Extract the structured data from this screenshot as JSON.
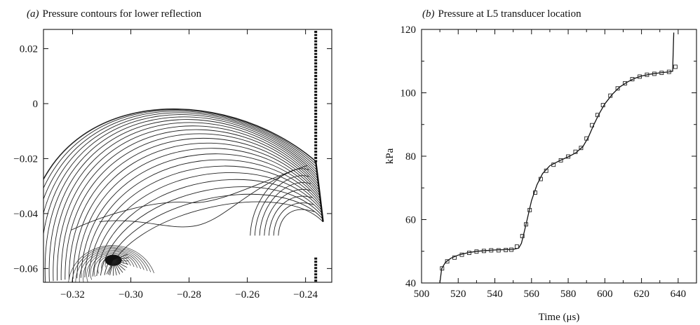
{
  "chart_data": [
    {
      "panel": "(a)",
      "type": "contour",
      "title_prefix": "(a)",
      "title": "Pressure contours for lower reflection",
      "xlabel": "",
      "ylabel": "",
      "xlim": [
        -0.33,
        -0.231
      ],
      "ylim": [
        -0.065,
        0.027
      ],
      "xticks": [
        -0.32,
        -0.3,
        -0.28,
        -0.26,
        -0.24
      ],
      "xtick_labels": [
        "−0.32",
        "−0.30",
        "−0.28",
        "−0.26",
        "−0.24"
      ],
      "yticks": [
        0.02,
        0,
        -0.02,
        -0.04,
        -0.06
      ],
      "ytick_labels": [
        "0.02",
        "0",
        "−0.02",
        "−0.04",
        "−0.06"
      ],
      "focus_point": [
        -0.306,
        -0.057
      ],
      "front_x": -0.2365,
      "front_kink": [
        -0.2365,
        -0.021
      ],
      "front_foot": [
        -0.234,
        -0.043
      ],
      "outer_front_top": [
        -0.275,
        -0.003
      ],
      "contour_count": 22
    },
    {
      "panel": "(b)",
      "type": "line",
      "title_prefix": "(b)",
      "title": "Pressure at L5 transducer location",
      "xlabel": "Time (μs)",
      "ylabel": "kPa",
      "xlim": [
        500,
        650
      ],
      "ylim": [
        40,
        120
      ],
      "xticks": [
        500,
        520,
        540,
        560,
        580,
        600,
        620,
        640
      ],
      "yticks": [
        40,
        60,
        80,
        100,
        120
      ],
      "series": [
        {
          "style": "solid-line",
          "x": [
            510,
            511,
            513,
            516,
            520,
            525,
            530,
            535,
            540,
            545,
            550,
            553,
            554.5,
            556,
            558,
            560,
            563,
            566,
            570,
            575,
            580,
            584,
            588,
            591,
            594,
            597,
            600,
            604,
            608,
            612,
            616,
            620,
            625,
            630,
            635,
            637,
            637.3,
            637.6
          ],
          "y": [
            40,
            44.5,
            46.5,
            47.8,
            48.8,
            49.5,
            50,
            50.2,
            50.4,
            50.5,
            50.6,
            51,
            52.5,
            56,
            61,
            66,
            71,
            74.5,
            77,
            78.5,
            79.8,
            81,
            83,
            86,
            90,
            93.5,
            96.5,
            99.5,
            101.8,
            103.3,
            104.5,
            105.3,
            105.9,
            106.3,
            106.6,
            106.8,
            113,
            119
          ]
        },
        {
          "style": "square-markers",
          "x": [
            511.2,
            514,
            518,
            522,
            526,
            530,
            534,
            538,
            542,
            546,
            549,
            552,
            555,
            557,
            559,
            562,
            565,
            568,
            572,
            576,
            580,
            584,
            587,
            590,
            593,
            596,
            599,
            603,
            607,
            611,
            615,
            619,
            623,
            627,
            631,
            635,
            638.5
          ],
          "y": [
            44.6,
            46.8,
            48.0,
            48.9,
            49.5,
            49.9,
            50.1,
            50.3,
            50.3,
            50.4,
            50.5,
            51.5,
            54.8,
            58.5,
            63.0,
            68.5,
            72.8,
            75.4,
            77.3,
            78.7,
            79.9,
            81.4,
            82.6,
            85.6,
            89.8,
            93.0,
            96.1,
            99.1,
            101.4,
            103.0,
            104.3,
            105.1,
            105.7,
            106.0,
            106.3,
            106.6,
            108.2
          ]
        }
      ]
    }
  ]
}
